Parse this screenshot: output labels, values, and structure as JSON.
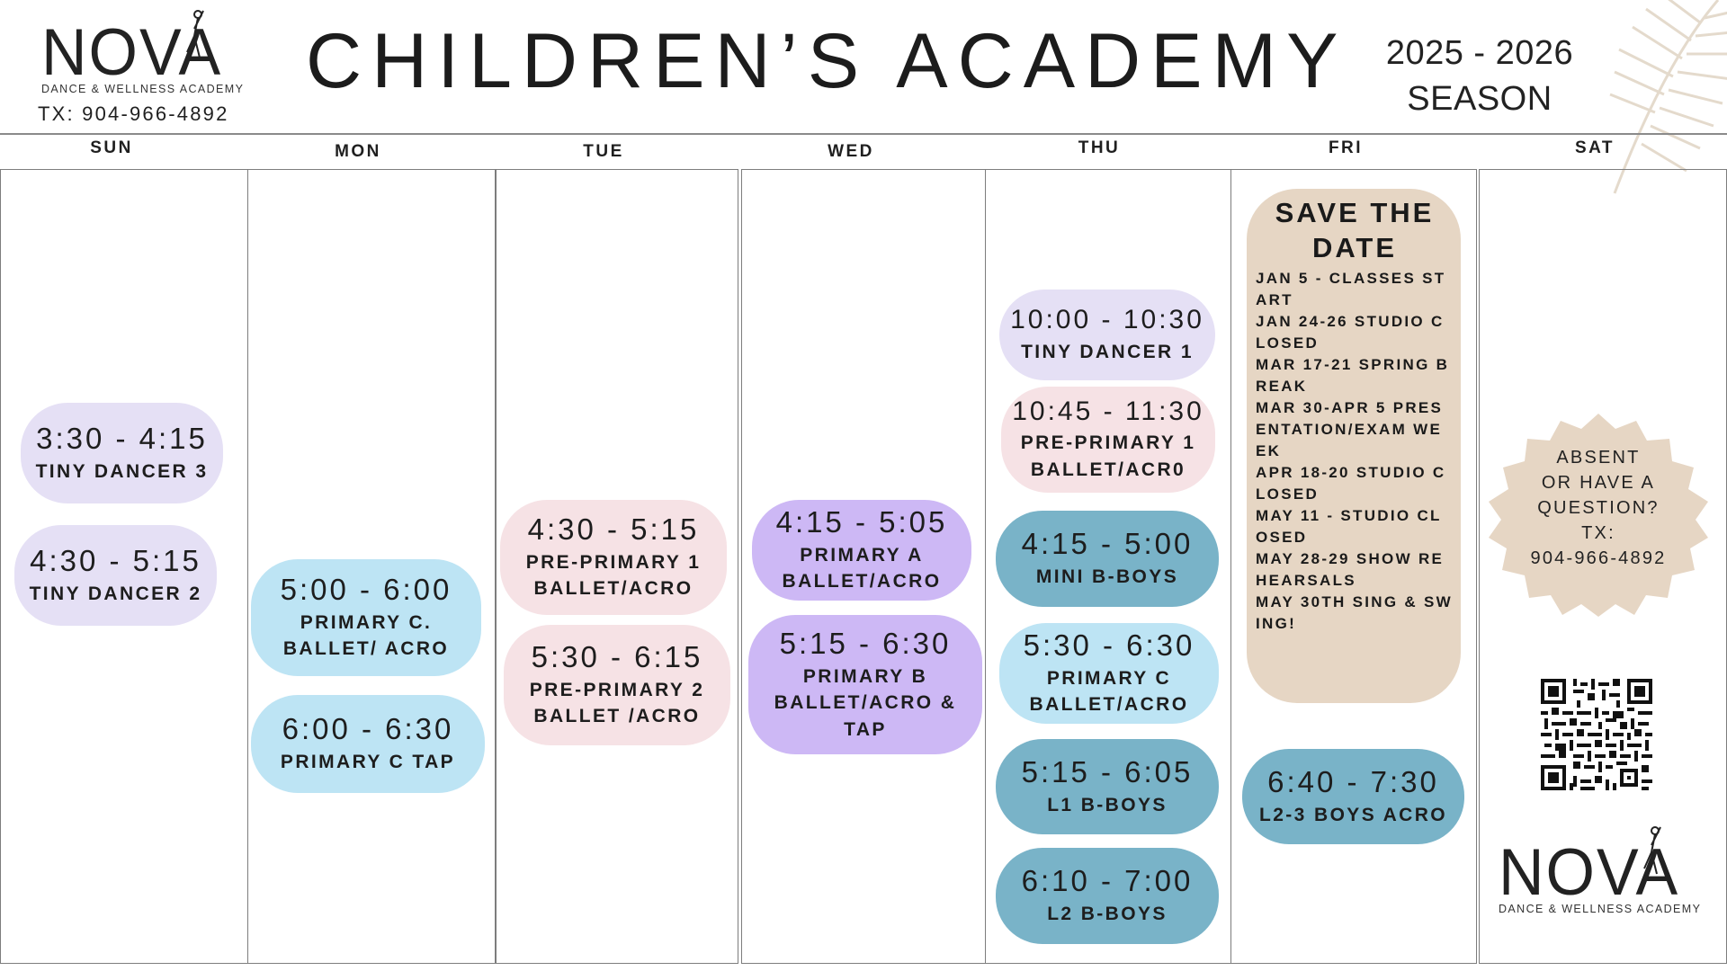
{
  "header": {
    "logo_word": "NOVA",
    "logo_sub": "DANCE & WELLNESS ACADEMY",
    "phone": "TX: 904-966-4892",
    "title": "CHILDREN’S ACADEMY",
    "season_line1": "2025 - 2026",
    "season_line2": "SEASON"
  },
  "days": [
    "SUN",
    "MON",
    "TUE",
    "WED",
    "THU",
    "FRI",
    "SAT"
  ],
  "colors": {
    "lavender": "#e5e0f5",
    "purple": "#cdb8f5",
    "pink": "#f6e2e5",
    "light_blue": "#bde4f4",
    "teal": "#79b3c8",
    "tan": "#e6d6c4"
  },
  "classes": {
    "sun": [
      {
        "time": "3:30 - 4:15",
        "name": "TINY DANCER 3"
      },
      {
        "time": "4:30 - 5:15",
        "name": "TINY DANCER 2"
      }
    ],
    "mon": [
      {
        "time": "5:00 - 6:00",
        "name_line1": "PRIMARY C.",
        "name_line2": "BALLET/ ACRO"
      },
      {
        "time": "6:00 - 6:30",
        "name": "PRIMARY C TAP"
      }
    ],
    "tue": [
      {
        "time": "4:30 - 5:15",
        "name_line1": "PRE-PRIMARY 1",
        "name_line2": "BALLET/ACRO"
      },
      {
        "time": "5:30 - 6:15",
        "name_line1": "PRE-PRIMARY 2",
        "name_line2": "BALLET /ACRO"
      }
    ],
    "wed": [
      {
        "time": "4:15 - 5:05",
        "name_line1": "PRIMARY A",
        "name_line2": "BALLET/ACRO"
      },
      {
        "time": "5:15 - 6:30",
        "name_line1": "PRIMARY B",
        "name_line2": "BALLET/ACRO &",
        "name_line3": "TAP"
      }
    ],
    "thu": [
      {
        "time": "10:00 - 10:30",
        "name": "TINY DANCER 1"
      },
      {
        "time": "10:45 - 11:30",
        "name_line1": "PRE-PRIMARY 1",
        "name_line2": "BALLET/ACR0"
      },
      {
        "time": "4:15 - 5:00",
        "name": "MINI B-BOYS"
      },
      {
        "time": "5:30 - 6:30",
        "name_line1": "PRIMARY C",
        "name_line2": "BALLET/ACRO"
      },
      {
        "time": "5:15 - 6:05",
        "name": "L1 B-BOYS"
      },
      {
        "time": "6:10 - 7:00",
        "name": "L2 B-BOYS"
      }
    ],
    "fri": [
      {
        "time": "6:40 - 7:30",
        "name": "L2-3 BOYS ACRO"
      }
    ]
  },
  "save_the_date": {
    "title_line1": "SAVE THE",
    "title_line2": "DATE",
    "items": [
      "JAN 5 - CLASSES START",
      "JAN 24-26 STUDIO CLOSED",
      "MAR 17-21 SPRING BREAK",
      "MAR 30-APR 5 PRESENTATION/EXAM WEEK",
      "APR 18-20 STUDIO CLOSED",
      "MAY 11 - STUDIO CLOSED",
      "MAY 28-29 SHOW REHEARSALS",
      "MAY 30TH SING & SWING!"
    ]
  },
  "contact_badge": {
    "line1": "ABSENT",
    "line2": "OR HAVE A",
    "line3": "QUESTION?",
    "line4": "TX:",
    "line5": "904-966-4892"
  },
  "icons": {
    "qr": "qr-code-icon",
    "palm": "palm-leaf-icon",
    "dancer": "dancer-figure-icon"
  }
}
